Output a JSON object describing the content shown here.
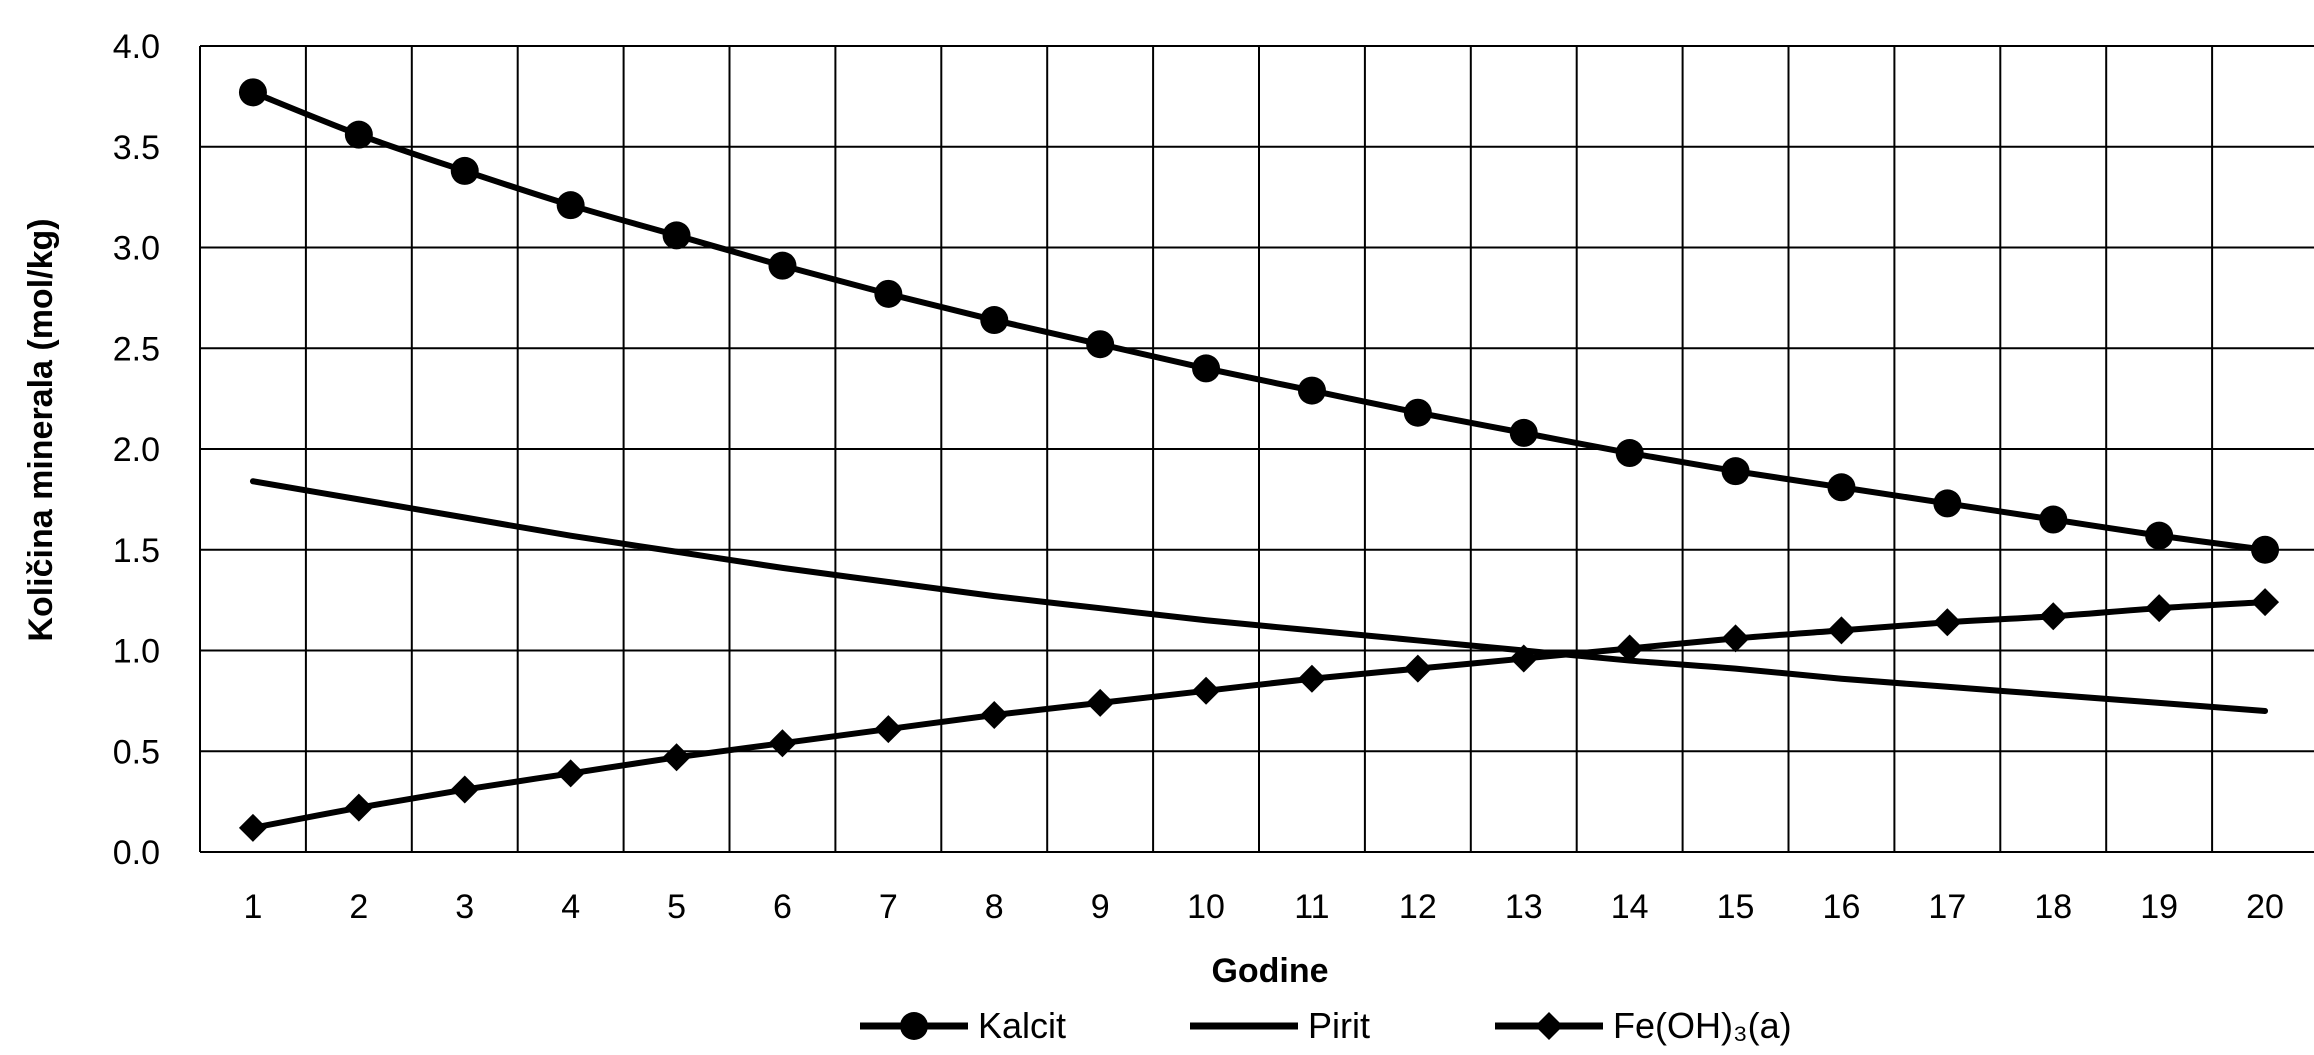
{
  "chart_data": {
    "type": "line",
    "title": "",
    "xlabel": "Godine",
    "ylabel": "Količina minerala (mol/kg)",
    "categories": [
      "1",
      "2",
      "3",
      "4",
      "5",
      "6",
      "7",
      "8",
      "9",
      "10",
      "11",
      "12",
      "13",
      "14",
      "15",
      "16",
      "17",
      "18",
      "19",
      "20"
    ],
    "ylim": [
      0.0,
      4.0
    ],
    "yticks": [
      "0.0",
      "0.5",
      "1.0",
      "1.5",
      "2.0",
      "2.5",
      "3.0",
      "3.5",
      "4.0"
    ],
    "grid": true,
    "legend_position": "bottom",
    "series": [
      {
        "name": "Kalcit",
        "marker": "circle",
        "values": [
          3.77,
          3.56,
          3.38,
          3.21,
          3.06,
          2.91,
          2.77,
          2.64,
          2.52,
          2.4,
          2.29,
          2.18,
          2.08,
          1.98,
          1.89,
          1.81,
          1.73,
          1.65,
          1.57,
          1.5
        ]
      },
      {
        "name": "Pirit",
        "marker": "none",
        "values": [
          1.84,
          1.75,
          1.66,
          1.57,
          1.49,
          1.41,
          1.34,
          1.27,
          1.21,
          1.15,
          1.1,
          1.05,
          1.0,
          0.95,
          0.91,
          0.86,
          0.82,
          0.78,
          0.74,
          0.7
        ]
      },
      {
        "name": "Fe(OH)₃(a)",
        "marker": "diamond",
        "values": [
          0.12,
          0.22,
          0.31,
          0.39,
          0.47,
          0.54,
          0.61,
          0.68,
          0.74,
          0.8,
          0.86,
          0.91,
          0.96,
          1.01,
          1.06,
          1.1,
          1.14,
          1.17,
          1.21,
          1.24
        ]
      }
    ],
    "colors": {
      "line": "#000000",
      "grid": "#000000",
      "background": "#ffffff"
    }
  }
}
